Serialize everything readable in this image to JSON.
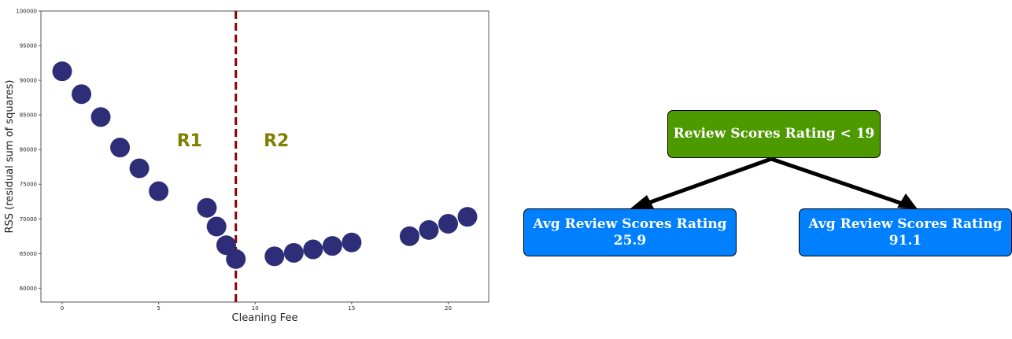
{
  "chart_data": {
    "type": "scatter",
    "title": "",
    "xlabel": "Cleaning Fee",
    "ylabel": "RSS (residual sum of squares)",
    "xlim": [
      -1.1,
      22.1
    ],
    "ylim": [
      58000,
      100000
    ],
    "x_ticks": [
      0,
      5,
      10,
      15,
      20
    ],
    "y_ticks": [
      60000,
      65000,
      70000,
      75000,
      80000,
      85000,
      90000,
      95000,
      100000
    ],
    "grid": false,
    "marker_color": "#2e2e78",
    "split": {
      "x": 9,
      "color": "#8b0000",
      "style": "dashed"
    },
    "region_labels": [
      {
        "text": "R1",
        "x": 6.6,
        "y": 80500
      },
      {
        "text": "R2",
        "x": 11.1,
        "y": 80500
      }
    ],
    "region_label_color": "#808000",
    "points": [
      {
        "x": 0,
        "y": 91300
      },
      {
        "x": 1,
        "y": 88000
      },
      {
        "x": 2,
        "y": 84700
      },
      {
        "x": 3,
        "y": 80300
      },
      {
        "x": 4,
        "y": 77300
      },
      {
        "x": 5,
        "y": 74000
      },
      {
        "x": 7.5,
        "y": 71600
      },
      {
        "x": 8,
        "y": 68900
      },
      {
        "x": 8.5,
        "y": 66200
      },
      {
        "x": 9,
        "y": 64200
      },
      {
        "x": 11,
        "y": 64600
      },
      {
        "x": 12,
        "y": 65100
      },
      {
        "x": 13,
        "y": 65600
      },
      {
        "x": 14,
        "y": 66100
      },
      {
        "x": 15,
        "y": 66600
      },
      {
        "x": 18,
        "y": 67500
      },
      {
        "x": 19,
        "y": 68400
      },
      {
        "x": 20,
        "y": 69300
      },
      {
        "x": 21,
        "y": 70300
      }
    ]
  },
  "tree": {
    "root": {
      "label": "Review Scores Rating < 19",
      "color": "#4d9900"
    },
    "leaves": [
      {
        "title": "Avg Review Scores Rating",
        "value": "25.9",
        "color": "#0080ff"
      },
      {
        "title": "Avg Review Scores Rating",
        "value": "91.1",
        "color": "#0080ff"
      }
    ]
  }
}
